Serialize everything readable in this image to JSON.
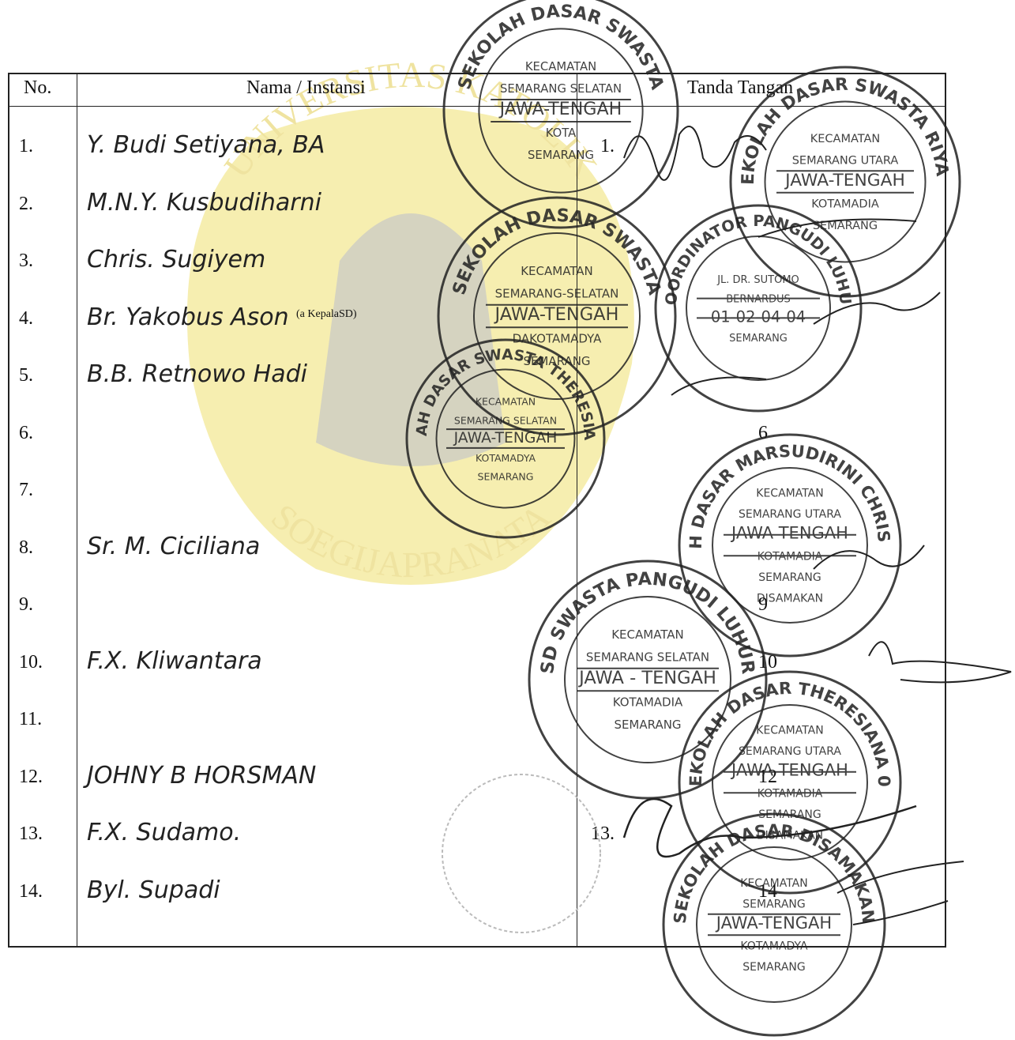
{
  "watermark": {
    "top": "UNIVERSITAS KATOLIK",
    "bottom": "SOEGIJAPRANATA"
  },
  "table": {
    "header": [
      "No.",
      "Nama / Instansi",
      "Tanda Tangan"
    ],
    "rows": [
      {
        "no": "1.",
        "name": "Y. Budi Setiyana, BA",
        "sign": "1."
      },
      {
        "no": "2.",
        "name": "M.N.Y. Kusbudiharni"
      },
      {
        "no": "3.",
        "name": "Chris. Sugiyem"
      },
      {
        "no": "4.",
        "name": "Br. Yakobus Ason",
        "note": "(a KepalaSD)"
      },
      {
        "no": "5.",
        "name": "B.B. Retnowo Hadi"
      },
      {
        "no": "6.",
        "sign": "6"
      },
      {
        "no": "7."
      },
      {
        "no": "8.",
        "name": "Sr. M. Ciciliana"
      },
      {
        "no": "9.",
        "sign": "9"
      },
      {
        "no": "10.",
        "name": "F.X. Kliwantara",
        "sign": "10"
      },
      {
        "no": "11."
      },
      {
        "no": "12.",
        "name": "JOHNY B HORSMAN",
        "sign": "12"
      },
      {
        "no": "13.",
        "name": "F.X. Sudamo.",
        "sign": "13."
      },
      {
        "no": "14.",
        "name": "Byl. Supadi",
        "sign": "14"
      }
    ]
  },
  "stamps": [
    {
      "ring": "SEKOLAH DASAR SWASTA",
      "lines": [
        "KECAMATAN",
        "SEMARANG SELATAN",
        "JAWA-TENGAH",
        "KOTA",
        "SEMARANG"
      ]
    },
    {
      "ring": "SEKOLAH DASAR SWASTA RIYADI",
      "lines": [
        "KECAMATAN",
        "SEMARANG UTARA",
        "JAWA-TENGAH",
        "KOTAMADIA",
        "SEMARANG"
      ]
    },
    {
      "ring": "SEKOLAH DASAR SWASTA",
      "lines": [
        "KECAMATAN",
        "SEMARANG-SELATAN",
        "JAWA-TENGAH",
        "DAKOTAMADYA",
        "SEMARANG"
      ]
    },
    {
      "ring": "SEKOLAH DASAR SWASTA THERESIANA 02",
      "lines": [
        "KECAMATAN",
        "SEMARANG SELATAN",
        "JAWA-TENGAH",
        "KOTAMADYA",
        "SEMARANG"
      ]
    },
    {
      "ring": "KOORDINATOR PANGUDI LUHUR",
      "lines": [
        "JL. DR. SUTOMO",
        "BERNARDUS",
        "01-02-04-04",
        "SEMARANG"
      ]
    },
    {
      "ring": "SEKOLAH DASAR MARSUDIRINI CHRISTUS REX",
      "lines": [
        "KECAMATAN",
        "SEMARANG UTARA",
        "JAWA TENGAH",
        "KOTAMADIA",
        "SEMARANG",
        "DISAMAKAN"
      ]
    },
    {
      "ring": "SD SWASTA PANGUDI LUHUR",
      "lines": [
        "KECAMATAN",
        "SEMARANG SELATAN",
        "JAWA - TENGAH",
        "KOTAMADIA",
        "SEMARANG"
      ]
    },
    {
      "ring": "SEKOLAH DASAR THERESIANA 03",
      "lines": [
        "KECAMATAN",
        "SEMARANG UTARA",
        "JAWA TENGAH",
        "KOTAMADIA",
        "SEMARANG",
        "DISAMAKAN"
      ]
    },
    {
      "ring": "SEKOLAH DASAR DISAMAKAN",
      "lines": [
        "KECAMATAN",
        "SEMARANG",
        "JAWA-TENGAH",
        "KOTAMADYA",
        "SEMARANG"
      ]
    }
  ]
}
